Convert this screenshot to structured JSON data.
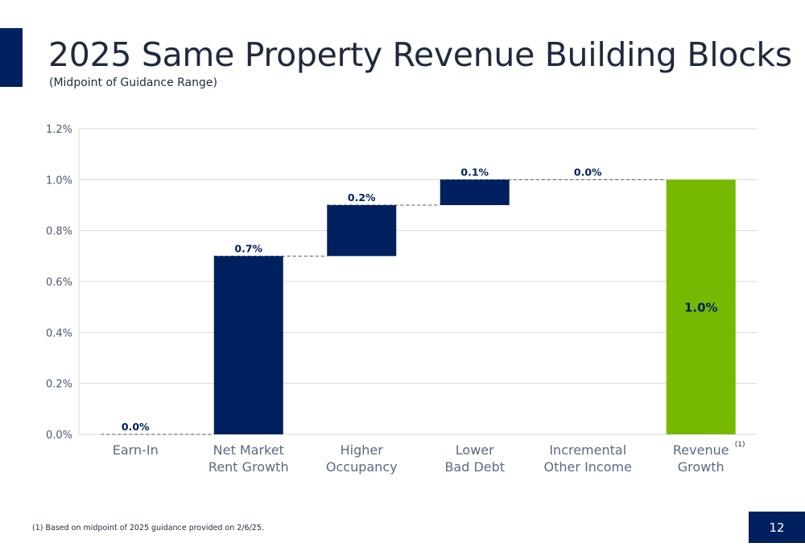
{
  "slide": {
    "title": "2025 Same Property Revenue Building Blocks",
    "subtitle": "(Midpoint of Guidance Range)",
    "footnote": "(1) Based on midpoint of 2025 guidance provided on 2/6/25.",
    "page_number": "12",
    "colors": {
      "navy": "#002060",
      "green": "#76b900",
      "axis_text": "#4a5872",
      "category_text": "#5a6a82",
      "grid": "#d9d9d9"
    }
  },
  "chart_data": {
    "type": "waterfall",
    "title": "2025 Same Property Revenue Building Blocks",
    "subtitle": "(Midpoint of Guidance Range)",
    "xlabel": "",
    "ylabel": "",
    "ylim": [
      0,
      0.012
    ],
    "yticks": [
      0,
      0.002,
      0.004,
      0.006,
      0.008,
      0.01,
      0.012
    ],
    "ytick_labels": [
      "0.0%",
      "0.2%",
      "0.4%",
      "0.6%",
      "0.8%",
      "1.0%",
      "1.2%"
    ],
    "grid": true,
    "categories": [
      {
        "lines": [
          "Earn-In"
        ],
        "superscript": ""
      },
      {
        "lines": [
          "Net Market",
          "Rent Growth"
        ],
        "superscript": ""
      },
      {
        "lines": [
          "Higher",
          "Occupancy"
        ],
        "superscript": ""
      },
      {
        "lines": [
          "Lower",
          "Bad Debt"
        ],
        "superscript": ""
      },
      {
        "lines": [
          "Incremental",
          "Other Income"
        ],
        "superscript": ""
      },
      {
        "lines": [
          "Revenue",
          "Growth"
        ],
        "superscript": "(1)"
      }
    ],
    "steps": [
      {
        "base": 0.0,
        "value": 0.0,
        "label": "0.0%",
        "color": "#002060",
        "total": false
      },
      {
        "base": 0.0,
        "value": 0.007,
        "label": "0.7%",
        "color": "#002060",
        "total": false
      },
      {
        "base": 0.007,
        "value": 0.002,
        "label": "0.2%",
        "color": "#002060",
        "total": false
      },
      {
        "base": 0.009,
        "value": 0.001,
        "label": "0.1%",
        "color": "#002060",
        "total": false
      },
      {
        "base": 0.01,
        "value": 0.0,
        "label": "0.0%",
        "color": "#002060",
        "total": false
      },
      {
        "base": 0.0,
        "value": 0.01,
        "label": "1.0%",
        "color": "#76b900",
        "total": true
      }
    ]
  }
}
